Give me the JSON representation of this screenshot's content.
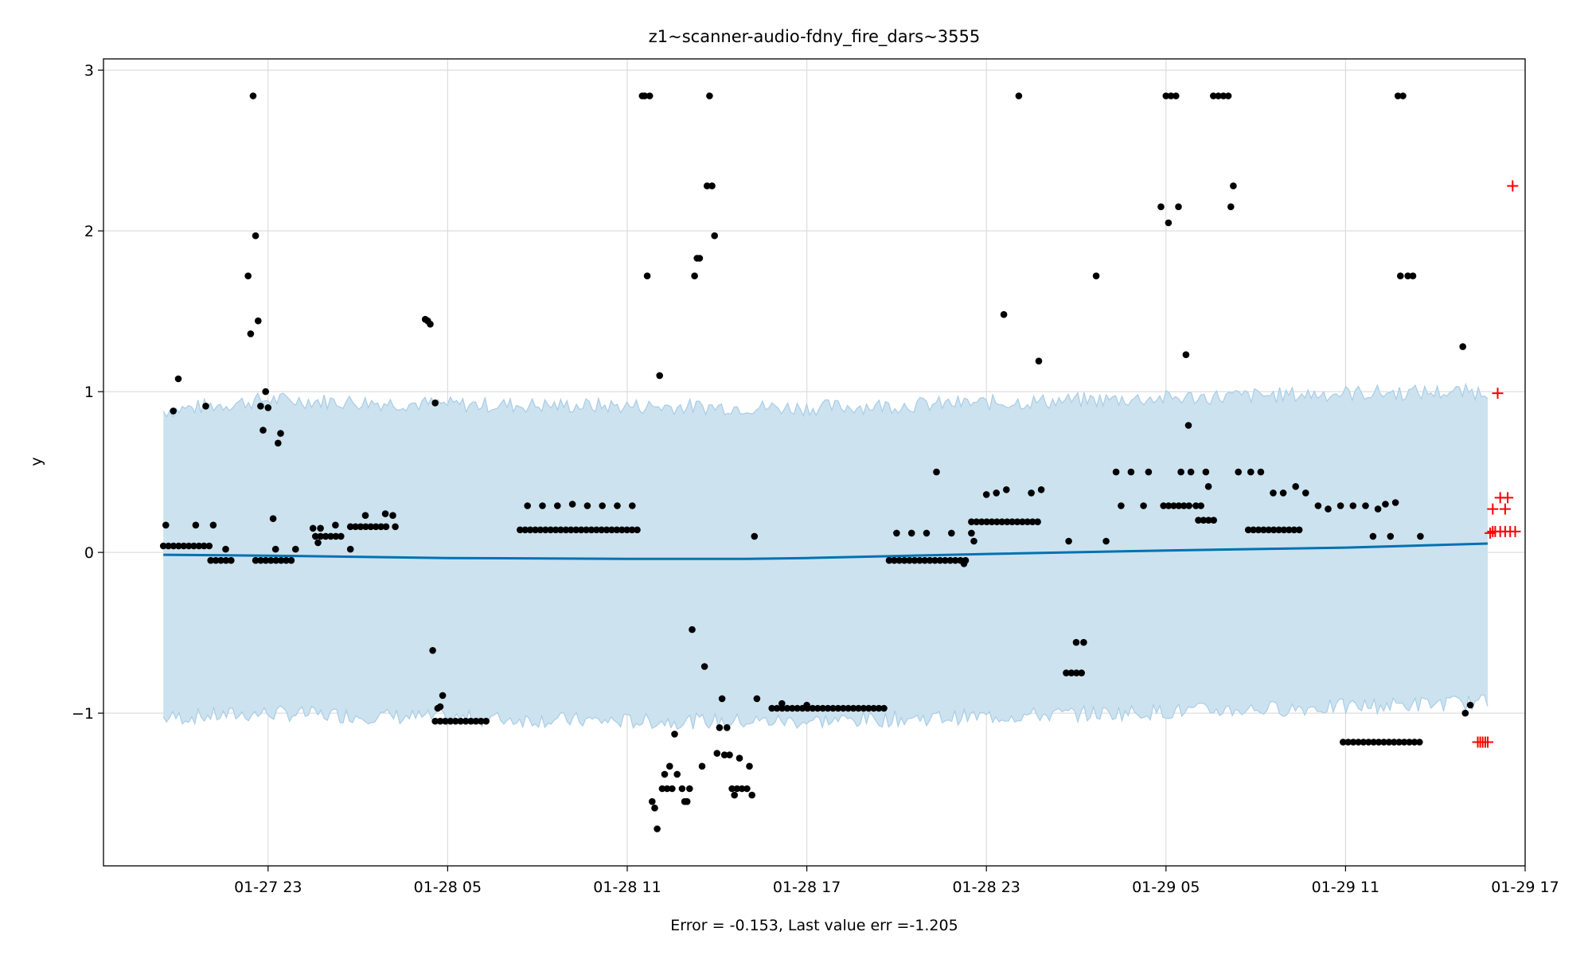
{
  "chart_data": {
    "type": "scatter",
    "title": "z1~scanner-audio-fdny_fire_dars~3555",
    "xlabel": "Error = -0.153, Last value err =-1.205",
    "ylabel": "y",
    "x_unit": "datetime",
    "xlim": [
      "2024-01-27 17:30",
      "2024-01-29 17:00"
    ],
    "ylim": [
      -1.95,
      3.07
    ],
    "x_ticks": [
      {
        "t": "2024-01-27 23:00",
        "label": "01-27 23"
      },
      {
        "t": "2024-01-28 05:00",
        "label": "01-28 05"
      },
      {
        "t": "2024-01-28 11:00",
        "label": "01-28 11"
      },
      {
        "t": "2024-01-28 17:00",
        "label": "01-28 17"
      },
      {
        "t": "2024-01-28 23:00",
        "label": "01-28 23"
      },
      {
        "t": "2024-01-29 05:00",
        "label": "01-29 05"
      },
      {
        "t": "2024-01-29 11:00",
        "label": "01-29 11"
      },
      {
        "t": "2024-01-29 17:00",
        "label": "01-29 17"
      }
    ],
    "y_ticks": [
      {
        "v": 3,
        "label": "3"
      },
      {
        "v": 2,
        "label": "2"
      },
      {
        "v": 1,
        "label": "1"
      },
      {
        "v": 0,
        "label": "0"
      },
      {
        "v": -1,
        "label": "−1"
      }
    ],
    "grid": true,
    "colors": {
      "observed": "#000000",
      "forecast_points": "#ff0000",
      "trend": "#0072b2",
      "band_fill": "#cce2ef",
      "band_edge": "#a9cde6",
      "grid": "#dddddd"
    },
    "series": [
      {
        "role": "band",
        "note": "uncertainty band (lower/upper bounds, noisy)",
        "x": [
          "2024-01-27 19:30",
          "2024-01-27 23:00",
          "2024-01-28 05:00",
          "2024-01-28 11:00",
          "2024-01-28 17:00",
          "2024-01-28 23:00",
          "2024-01-29 05:00",
          "2024-01-29 11:00",
          "2024-01-29 15:45"
        ],
        "lower": [
          -1.03,
          -1.0,
          -1.03,
          -1.05,
          -1.05,
          -1.02,
          -0.99,
          -0.96,
          -0.93
        ],
        "upper": [
          0.88,
          0.95,
          0.92,
          0.91,
          0.9,
          0.93,
          0.96,
          0.99,
          1.0
        ]
      },
      {
        "role": "trend",
        "x": [
          "2024-01-27 19:30",
          "2024-01-27 23:00",
          "2024-01-28 05:00",
          "2024-01-28 11:00",
          "2024-01-28 15:00",
          "2024-01-28 17:00",
          "2024-01-28 23:00",
          "2024-01-29 05:00",
          "2024-01-29 11:00",
          "2024-01-29 15:45"
        ],
        "y": [
          -0.015,
          -0.02,
          -0.035,
          -0.04,
          -0.04,
          -0.035,
          -0.01,
          0.012,
          0.03,
          0.055
        ]
      },
      {
        "role": "observed",
        "clusters": [
          {
            "start": "2024-01-27 19:30",
            "end": "2024-01-27 21:05",
            "y": 0.04
          },
          {
            "start": "2024-01-27 21:05",
            "end": "2024-01-27 21:55",
            "y": -0.05
          },
          {
            "start": "2024-01-27 22:35",
            "end": "2024-01-27 23:55",
            "y": -0.05
          },
          {
            "start": "2024-01-28 00:35",
            "end": "2024-01-28 01:30",
            "y": 0.1
          },
          {
            "start": "2024-01-28 01:45",
            "end": "2024-01-28 03:00",
            "y": 0.16
          },
          {
            "start": "2024-01-28 04:35",
            "end": "2024-01-28 06:25",
            "y": -1.05
          },
          {
            "start": "2024-01-28 07:25",
            "end": "2024-01-28 11:25",
            "y": 0.14
          },
          {
            "start": "2024-01-28 15:50",
            "end": "2024-01-28 19:35",
            "y": -0.97
          },
          {
            "start": "2024-01-28 19:45",
            "end": "2024-01-28 22:20",
            "y": -0.05
          },
          {
            "start": "2024-01-28 22:30",
            "end": "2024-01-29 00:45",
            "y": 0.19
          },
          {
            "start": "2024-01-29 01:40",
            "end": "2024-01-29 02:15",
            "y": -0.75
          },
          {
            "start": "2024-01-29 04:55",
            "end": "2024-01-29 05:50",
            "y": 0.29
          },
          {
            "start": "2024-01-29 06:05",
            "end": "2024-01-29 06:45",
            "y": 0.2
          },
          {
            "start": "2024-01-29 07:45",
            "end": "2024-01-29 09:35",
            "y": 0.14
          },
          {
            "start": "2024-01-29 10:55",
            "end": "2024-01-29 13:35",
            "y": -1.18
          }
        ],
        "points": [
          [
            "2024-01-27 19:35",
            0.17
          ],
          [
            "2024-01-27 19:50",
            0.88
          ],
          [
            "2024-01-27 20:00",
            1.08
          ],
          [
            "2024-01-27 20:55",
            0.91
          ],
          [
            "2024-01-27 20:35",
            0.17
          ],
          [
            "2024-01-27 21:10",
            0.17
          ],
          [
            "2024-01-27 21:35",
            0.02
          ],
          [
            "2024-01-27 22:20",
            1.72
          ],
          [
            "2024-01-27 22:25",
            1.36
          ],
          [
            "2024-01-27 22:30",
            2.84
          ],
          [
            "2024-01-27 22:35",
            1.97
          ],
          [
            "2024-01-27 22:40",
            1.44
          ],
          [
            "2024-01-27 22:45",
            0.91
          ],
          [
            "2024-01-27 22:50",
            0.76
          ],
          [
            "2024-01-27 22:55",
            1.0
          ],
          [
            "2024-01-27 23:00",
            0.9
          ],
          [
            "2024-01-27 23:10",
            0.21
          ],
          [
            "2024-01-27 23:15",
            0.02
          ],
          [
            "2024-01-27 23:20",
            0.68
          ],
          [
            "2024-01-27 23:25",
            0.74
          ],
          [
            "2024-01-27 23:55",
            0.02
          ],
          [
            "2024-01-28 00:30",
            0.15
          ],
          [
            "2024-01-28 00:40",
            0.06
          ],
          [
            "2024-01-28 00:45",
            0.15
          ],
          [
            "2024-01-28 01:15",
            0.17
          ],
          [
            "2024-01-28 01:45",
            0.02
          ],
          [
            "2024-01-28 02:15",
            0.23
          ],
          [
            "2024-01-28 02:55",
            0.24
          ],
          [
            "2024-01-28 03:10",
            0.23
          ],
          [
            "2024-01-28 03:15",
            0.16
          ],
          [
            "2024-01-28 04:15",
            1.45
          ],
          [
            "2024-01-28 04:20",
            1.44
          ],
          [
            "2024-01-28 04:25",
            1.42
          ],
          [
            "2024-01-28 04:30",
            -0.61
          ],
          [
            "2024-01-28 04:35",
            0.93
          ],
          [
            "2024-01-28 04:40",
            -0.97
          ],
          [
            "2024-01-28 04:45",
            -0.96
          ],
          [
            "2024-01-28 04:50",
            -0.89
          ],
          [
            "2024-01-28 07:40",
            0.29
          ],
          [
            "2024-01-28 08:10",
            0.29
          ],
          [
            "2024-01-28 08:40",
            0.29
          ],
          [
            "2024-01-28 09:10",
            0.3
          ],
          [
            "2024-01-28 09:40",
            0.29
          ],
          [
            "2024-01-28 10:10",
            0.29
          ],
          [
            "2024-01-28 10:40",
            0.29
          ],
          [
            "2024-01-28 11:10",
            0.29
          ],
          [
            "2024-01-28 11:30",
            2.84
          ],
          [
            "2024-01-28 11:35",
            2.84
          ],
          [
            "2024-01-28 11:40",
            1.72
          ],
          [
            "2024-01-28 11:45",
            2.84
          ],
          [
            "2024-01-28 11:50",
            -1.55
          ],
          [
            "2024-01-28 11:55",
            -1.59
          ],
          [
            "2024-01-28 12:00",
            -1.72
          ],
          [
            "2024-01-28 12:05",
            1.1
          ],
          [
            "2024-01-28 12:10",
            -1.47
          ],
          [
            "2024-01-28 12:15",
            -1.38
          ],
          [
            "2024-01-28 12:20",
            -1.47
          ],
          [
            "2024-01-28 12:25",
            -1.33
          ],
          [
            "2024-01-28 12:30",
            -1.47
          ],
          [
            "2024-01-28 12:35",
            -1.13
          ],
          [
            "2024-01-28 12:40",
            -1.38
          ],
          [
            "2024-01-28 12:50",
            -1.47
          ],
          [
            "2024-01-28 12:55",
            -1.55
          ],
          [
            "2024-01-28 13:00",
            -1.55
          ],
          [
            "2024-01-28 13:05",
            -1.47
          ],
          [
            "2024-01-28 13:10",
            -0.48
          ],
          [
            "2024-01-28 13:15",
            1.72
          ],
          [
            "2024-01-28 13:20",
            1.83
          ],
          [
            "2024-01-28 13:25",
            1.83
          ],
          [
            "2024-01-28 13:30",
            -1.33
          ],
          [
            "2024-01-28 13:35",
            -0.71
          ],
          [
            "2024-01-28 13:40",
            2.28
          ],
          [
            "2024-01-28 13:45",
            2.84
          ],
          [
            "2024-01-28 13:50",
            2.28
          ],
          [
            "2024-01-28 13:55",
            1.97
          ],
          [
            "2024-01-28 14:00",
            -1.25
          ],
          [
            "2024-01-28 14:05",
            -1.09
          ],
          [
            "2024-01-28 14:10",
            -0.91
          ],
          [
            "2024-01-28 14:15",
            -1.26
          ],
          [
            "2024-01-28 14:20",
            -1.09
          ],
          [
            "2024-01-28 14:25",
            -1.26
          ],
          [
            "2024-01-28 14:30",
            -1.47
          ],
          [
            "2024-01-28 14:35",
            -1.51
          ],
          [
            "2024-01-28 14:40",
            -1.47
          ],
          [
            "2024-01-28 14:45",
            -1.28
          ],
          [
            "2024-01-28 14:50",
            -1.47
          ],
          [
            "2024-01-28 15:00",
            -1.47
          ],
          [
            "2024-01-28 15:05",
            -1.33
          ],
          [
            "2024-01-28 15:10",
            -1.51
          ],
          [
            "2024-01-28 15:15",
            0.1
          ],
          [
            "2024-01-28 15:20",
            -0.91
          ],
          [
            "2024-01-28 16:10",
            -0.94
          ],
          [
            "2024-01-28 17:00",
            -0.95
          ],
          [
            "2024-01-28 20:00",
            0.12
          ],
          [
            "2024-01-28 20:30",
            0.12
          ],
          [
            "2024-01-28 21:00",
            0.12
          ],
          [
            "2024-01-28 21:20",
            0.5
          ],
          [
            "2024-01-28 21:50",
            0.12
          ],
          [
            "2024-01-28 22:30",
            0.12
          ],
          [
            "2024-01-28 22:15",
            -0.07
          ],
          [
            "2024-01-28 22:35",
            0.07
          ],
          [
            "2024-01-28 23:00",
            0.36
          ],
          [
            "2024-01-28 23:20",
            0.37
          ],
          [
            "2024-01-28 23:35",
            1.48
          ],
          [
            "2024-01-28 23:40",
            0.39
          ],
          [
            "2024-01-29 00:05",
            2.84
          ],
          [
            "2024-01-29 00:30",
            0.37
          ],
          [
            "2024-01-29 00:45",
            1.19
          ],
          [
            "2024-01-29 00:50",
            0.39
          ],
          [
            "2024-01-29 01:45",
            0.07
          ],
          [
            "2024-01-29 02:00",
            -0.56
          ],
          [
            "2024-01-29 02:15",
            -0.56
          ],
          [
            "2024-01-29 02:40",
            1.72
          ],
          [
            "2024-01-29 03:00",
            0.07
          ],
          [
            "2024-01-29 03:20",
            0.5
          ],
          [
            "2024-01-29 03:30",
            0.29
          ],
          [
            "2024-01-29 03:50",
            0.5
          ],
          [
            "2024-01-29 04:15",
            0.29
          ],
          [
            "2024-01-29 04:25",
            0.5
          ],
          [
            "2024-01-29 04:50",
            2.15
          ],
          [
            "2024-01-29 05:00",
            2.84
          ],
          [
            "2024-01-29 05:05",
            2.05
          ],
          [
            "2024-01-29 05:10",
            2.84
          ],
          [
            "2024-01-29 05:20",
            2.84
          ],
          [
            "2024-01-29 05:25",
            2.15
          ],
          [
            "2024-01-29 05:30",
            0.5
          ],
          [
            "2024-01-29 05:40",
            1.23
          ],
          [
            "2024-01-29 05:45",
            0.79
          ],
          [
            "2024-01-29 05:50",
            0.5
          ],
          [
            "2024-01-29 06:00",
            0.29
          ],
          [
            "2024-01-29 06:10",
            0.29
          ],
          [
            "2024-01-29 06:20",
            0.5
          ],
          [
            "2024-01-29 06:25",
            0.41
          ],
          [
            "2024-01-29 06:35",
            2.84
          ],
          [
            "2024-01-29 06:45",
            2.84
          ],
          [
            "2024-01-29 06:55",
            2.84
          ],
          [
            "2024-01-29 07:05",
            2.84
          ],
          [
            "2024-01-29 07:10",
            2.15
          ],
          [
            "2024-01-29 07:15",
            2.28
          ],
          [
            "2024-01-29 07:25",
            0.5
          ],
          [
            "2024-01-29 07:50",
            0.5
          ],
          [
            "2024-01-29 08:10",
            0.5
          ],
          [
            "2024-01-29 08:35",
            0.37
          ],
          [
            "2024-01-29 08:55",
            0.37
          ],
          [
            "2024-01-29 09:20",
            0.41
          ],
          [
            "2024-01-29 09:40",
            0.37
          ],
          [
            "2024-01-29 10:05",
            0.29
          ],
          [
            "2024-01-29 10:25",
            0.27
          ],
          [
            "2024-01-29 10:50",
            0.29
          ],
          [
            "2024-01-29 11:15",
            0.29
          ],
          [
            "2024-01-29 11:40",
            0.29
          ],
          [
            "2024-01-29 12:05",
            0.27
          ],
          [
            "2024-01-29 12:20",
            0.3
          ],
          [
            "2024-01-29 12:40",
            0.31
          ],
          [
            "2024-01-29 11:55",
            0.1
          ],
          [
            "2024-01-29 12:30",
            0.1
          ],
          [
            "2024-01-29 12:45",
            2.84
          ],
          [
            "2024-01-29 12:55",
            2.84
          ],
          [
            "2024-01-29 12:50",
            1.72
          ],
          [
            "2024-01-29 13:05",
            1.72
          ],
          [
            "2024-01-29 13:15",
            1.72
          ],
          [
            "2024-01-29 13:30",
            0.1
          ],
          [
            "2024-01-29 14:55",
            1.28
          ],
          [
            "2024-01-29 15:00",
            -1.0
          ],
          [
            "2024-01-29 15:10",
            -0.95
          ]
        ]
      },
      {
        "role": "forecast_points",
        "marker": "+",
        "points": [
          [
            "2024-01-29 15:25",
            -1.18
          ],
          [
            "2024-01-29 15:30",
            -1.18
          ],
          [
            "2024-01-29 15:35",
            -1.18
          ],
          [
            "2024-01-29 15:40",
            -1.18
          ],
          [
            "2024-01-29 15:45",
            -1.18
          ],
          [
            "2024-01-29 15:50",
            0.12
          ],
          [
            "2024-01-29 15:55",
            0.27
          ],
          [
            "2024-01-29 16:05",
            0.99
          ],
          [
            "2024-01-29 15:55",
            0.13
          ],
          [
            "2024-01-29 16:00",
            0.13
          ],
          [
            "2024-01-29 16:10",
            0.13
          ],
          [
            "2024-01-29 16:10",
            0.34
          ],
          [
            "2024-01-29 16:20",
            0.13
          ],
          [
            "2024-01-29 16:20",
            0.27
          ],
          [
            "2024-01-29 16:25",
            0.34
          ],
          [
            "2024-01-29 16:30",
            0.13
          ],
          [
            "2024-01-29 16:35",
            2.28
          ],
          [
            "2024-01-29 16:40",
            0.13
          ]
        ]
      }
    ]
  }
}
